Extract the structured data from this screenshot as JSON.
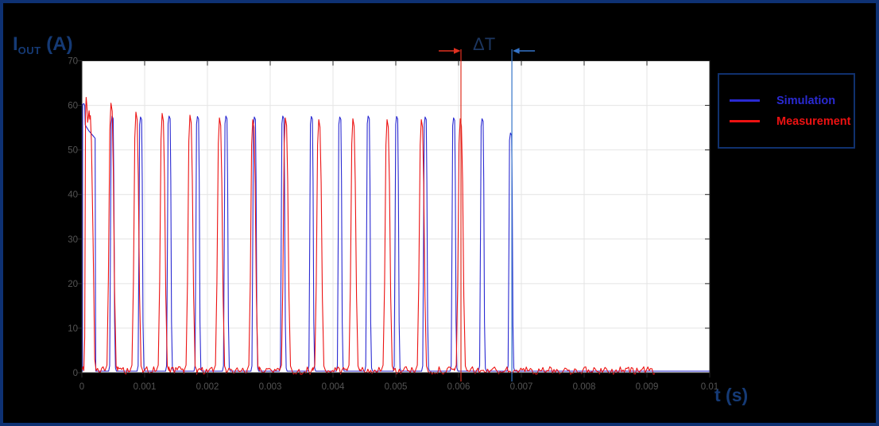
{
  "figure": {
    "background": "#000000",
    "frame_color": "#0e3173",
    "y_axis_label": {
      "base": "I",
      "sub": "OUT",
      "rest": " (A)",
      "color": "#153a75"
    },
    "x_axis_label": "t (s)",
    "x_axis_label_color": "#153a75"
  },
  "legend": {
    "border_color": "#10316e",
    "position": "northeast",
    "items": [
      {
        "label": "Simulation",
        "color": "#2a2ad2"
      },
      {
        "label": "Measurement",
        "color": "#ec1212"
      }
    ]
  },
  "chart_data": {
    "type": "line",
    "title": "",
    "xlabel": "t (s)",
    "ylabel": "I_OUT (A)",
    "xlim": [
      0,
      0.01
    ],
    "ylim": [
      0,
      70
    ],
    "x_ticks": [
      0,
      0.001,
      0.002,
      0.003,
      0.004,
      0.005,
      0.006,
      0.007,
      0.008,
      0.009,
      0.01
    ],
    "x_tick_labels": [
      "0",
      "0.001",
      "0.002",
      "0.003",
      "0.004",
      "0.005",
      "0.006",
      "0.007",
      "0.008",
      "0.009",
      "0.01"
    ],
    "y_ticks": [
      0,
      10,
      20,
      30,
      40,
      50,
      60,
      70
    ],
    "grid": true,
    "grid_color": "#e4e4e4",
    "axis_color": "#262626",
    "tick_label_color": "#545454",
    "plot_background": "#ffffff",
    "series": [
      {
        "name": "Simulation",
        "color": "#2a2ad2",
        "baseline": 0.35,
        "x_end": 0.01,
        "pulse_shape": "narrow",
        "first_pulse": [
          [
            1e-05,
            0.35
          ],
          [
            1.3e-05,
            60.2
          ],
          [
            3e-05,
            60.4
          ],
          [
            4.6e-05,
            60.0
          ],
          [
            5.3e-05,
            55.6
          ],
          [
            0.00011,
            54.3
          ],
          [
            0.000195,
            52.9
          ],
          [
            0.000212,
            52.6
          ],
          [
            0.000217,
            20.0
          ],
          [
            0.000221,
            0.35
          ]
        ],
        "pulses": [
          [
            0.000491,
            57.6
          ],
          [
            0.000944,
            57.4
          ],
          [
            0.001398,
            57.6
          ],
          [
            0.001851,
            57.5
          ],
          [
            0.002304,
            57.6
          ],
          [
            0.002757,
            57.4
          ],
          [
            0.00321,
            57.6
          ],
          [
            0.003664,
            57.5
          ],
          [
            0.004117,
            57.4
          ],
          [
            0.00457,
            57.6
          ],
          [
            0.005023,
            57.5
          ],
          [
            0.005477,
            57.4
          ],
          [
            0.00593,
            57.2
          ],
          [
            0.006383,
            57.0
          ],
          [
            0.006836,
            53.8
          ]
        ]
      },
      {
        "name": "Measurement",
        "color": "#ec1212",
        "baseline": 0.5,
        "noise_amp": 0.85,
        "x_end": 0.00913,
        "pulse_shape": "wide",
        "first_pulse": [
          [
            3.2e-05,
            0.5
          ],
          [
            4.5e-05,
            8.0
          ],
          [
            5.8e-05,
            58.0
          ],
          [
            6.8e-05,
            61.8
          ],
          [
            8e-05,
            60.0
          ],
          [
            9.2e-05,
            56.2
          ],
          [
            0.000105,
            57.5
          ],
          [
            0.000115,
            58.8
          ],
          [
            0.000126,
            56.9
          ],
          [
            0.000136,
            57.7
          ],
          [
            0.000152,
            52.0
          ],
          [
            0.000178,
            30.0
          ],
          [
            0.000205,
            3.0
          ],
          [
            0.000228,
            0.5
          ]
        ],
        "pulses": [
          [
            0.000475,
            60.5
          ],
          [
            0.000873,
            58.5
          ],
          [
            0.001291,
            58.2
          ],
          [
            0.001734,
            57.8
          ],
          [
            0.002203,
            57.2
          ],
          [
            0.002734,
            56.8
          ],
          [
            0.003253,
            57.2
          ],
          [
            0.003785,
            56.8
          ],
          [
            0.004329,
            57.0
          ],
          [
            0.004873,
            56.8
          ],
          [
            0.005418,
            56.8
          ],
          [
            0.006038,
            57.0
          ]
        ]
      }
    ],
    "markers": {
      "label": "ΔT",
      "label_color": "#1c3660",
      "red_line": {
        "t": 0.006038,
        "color": "#e03020"
      },
      "blue_line": {
        "t": 0.006849,
        "color": "#3474c9"
      }
    }
  }
}
